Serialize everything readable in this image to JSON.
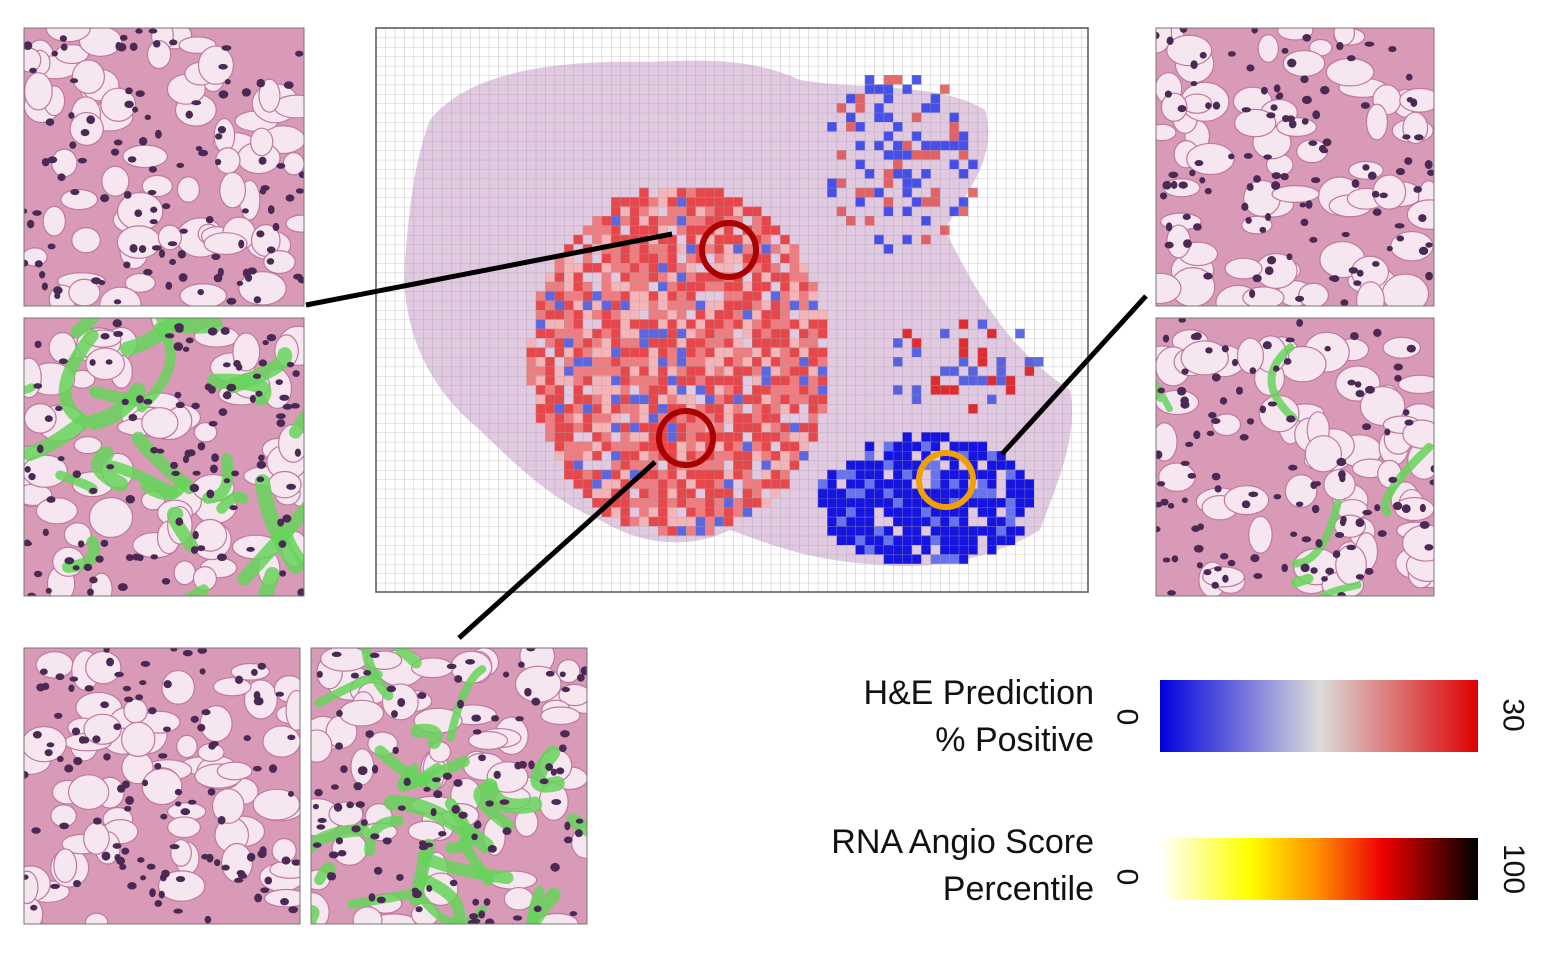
{
  "legend": {
    "he": {
      "title_line1": "H&E Prediction",
      "title_line2": "% Positive",
      "min_label": "0",
      "max_label": "30",
      "colors": [
        "#0000dd",
        "#dcdcdc",
        "#dd0000"
      ]
    },
    "rna": {
      "title_line1": "RNA Angio Score",
      "title_line2": "Percentile",
      "min_label": "0",
      "max_label": "100",
      "colors": [
        "#ffffff",
        "#ffff00",
        "#ff8c00",
        "#ee0000",
        "#000000"
      ]
    }
  },
  "markers": {
    "high_region_color": "#aa0000",
    "low_region_color": "#f0a000"
  },
  "tissue": {
    "he_pink": "#e6b7cf",
    "nucleus": "#4a2a55",
    "vessel_overlay": "#66d45a"
  }
}
